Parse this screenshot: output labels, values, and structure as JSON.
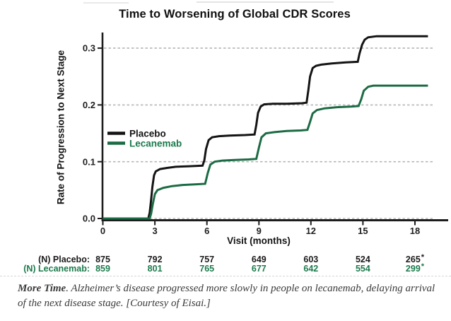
{
  "title": "Time to Worsening of Global CDR Scores",
  "colors": {
    "placebo_line": "#141414",
    "lecanemab_line": "#1c6b44",
    "lecanemab_text": "#1c7a4c",
    "grid": "#b5b5b5",
    "axis": "#1c1c1c"
  },
  "chart_data": {
    "type": "line",
    "subtype": "step-cumulative-incidence",
    "title": "Time to Worsening of Global CDR Scores",
    "xlabel": "Visit (months)",
    "ylabel": "Rate of Progression to Next Stage",
    "xlim": [
      0,
      19.2
    ],
    "ylim": [
      0,
      0.325
    ],
    "xticks": [
      0,
      3,
      6,
      9,
      12,
      15,
      18
    ],
    "xtick_labels": [
      "0",
      "3",
      "6",
      "9",
      "12",
      "15",
      "18"
    ],
    "yticks": [
      0,
      0.1,
      0.2,
      0.3
    ],
    "ytick_labels": [
      "0.0",
      "0.1",
      "0.2",
      "0.3"
    ],
    "grid": "horizontal dashed at 0.0, 0.1, 0.2, 0.3",
    "legend_position": "inside left-middle",
    "series": [
      {
        "name": "Placebo",
        "color_key": "placebo_line",
        "text_color_key": "placebo_line",
        "points": [
          [
            0,
            0
          ],
          [
            2.62,
            0
          ],
          [
            2.7,
            0.01
          ],
          [
            2.78,
            0.032
          ],
          [
            2.86,
            0.056
          ],
          [
            2.95,
            0.076
          ],
          [
            3.05,
            0.083
          ],
          [
            3.3,
            0.087
          ],
          [
            3.7,
            0.089
          ],
          [
            4.2,
            0.091
          ],
          [
            5.0,
            0.092
          ],
          [
            5.75,
            0.093
          ],
          [
            5.85,
            0.102
          ],
          [
            5.95,
            0.122
          ],
          [
            6.1,
            0.138
          ],
          [
            6.3,
            0.143
          ],
          [
            6.7,
            0.145
          ],
          [
            7.3,
            0.146
          ],
          [
            8.2,
            0.147
          ],
          [
            8.75,
            0.148
          ],
          [
            8.85,
            0.165
          ],
          [
            8.95,
            0.186
          ],
          [
            9.1,
            0.197
          ],
          [
            9.3,
            0.201
          ],
          [
            9.8,
            0.202
          ],
          [
            10.6,
            0.202
          ],
          [
            11.5,
            0.203
          ],
          [
            11.75,
            0.204
          ],
          [
            11.85,
            0.226
          ],
          [
            11.95,
            0.25
          ],
          [
            12.1,
            0.265
          ],
          [
            12.3,
            0.269
          ],
          [
            12.6,
            0.271
          ],
          [
            13.2,
            0.273
          ],
          [
            14.0,
            0.275
          ],
          [
            14.7,
            0.276
          ],
          [
            14.8,
            0.29
          ],
          [
            14.95,
            0.306
          ],
          [
            15.1,
            0.315
          ],
          [
            15.3,
            0.319
          ],
          [
            15.8,
            0.321
          ],
          [
            18.75,
            0.321
          ]
        ]
      },
      {
        "name": "Lecanemab",
        "color_key": "lecanemab_line",
        "text_color_key": "lecanemab_text",
        "points": [
          [
            0,
            0
          ],
          [
            2.7,
            0
          ],
          [
            2.78,
            0.008
          ],
          [
            2.88,
            0.025
          ],
          [
            3.0,
            0.043
          ],
          [
            3.15,
            0.05
          ],
          [
            3.5,
            0.054
          ],
          [
            4.0,
            0.057
          ],
          [
            4.6,
            0.059
          ],
          [
            5.3,
            0.06
          ],
          [
            5.9,
            0.061
          ],
          [
            6.05,
            0.08
          ],
          [
            6.2,
            0.095
          ],
          [
            6.45,
            0.1
          ],
          [
            6.9,
            0.102
          ],
          [
            7.6,
            0.103
          ],
          [
            8.4,
            0.104
          ],
          [
            8.85,
            0.105
          ],
          [
            9.0,
            0.125
          ],
          [
            9.15,
            0.143
          ],
          [
            9.4,
            0.15
          ],
          [
            9.9,
            0.152
          ],
          [
            10.6,
            0.154
          ],
          [
            11.4,
            0.155
          ],
          [
            11.8,
            0.156
          ],
          [
            11.95,
            0.17
          ],
          [
            12.1,
            0.185
          ],
          [
            12.35,
            0.191
          ],
          [
            12.8,
            0.194
          ],
          [
            13.5,
            0.196
          ],
          [
            14.3,
            0.197
          ],
          [
            14.75,
            0.198
          ],
          [
            14.9,
            0.21
          ],
          [
            15.05,
            0.225
          ],
          [
            15.3,
            0.232
          ],
          [
            15.6,
            0.234
          ],
          [
            18.75,
            0.234
          ]
        ]
      }
    ]
  },
  "legend": [
    {
      "label": "Placebo",
      "color_key": "placebo_line",
      "text_color_key": "placebo_line"
    },
    {
      "label": "Lecanemab",
      "color_key": "lecanemab_line",
      "text_color_key": "lecanemab_text"
    }
  ],
  "risk_table": {
    "rows": [
      {
        "label": "(N) Placebo:",
        "color": "#1a1a1a",
        "values": [
          "875",
          "792",
          "757",
          "649",
          "603",
          "524",
          "265*"
        ]
      },
      {
        "label": "(N) Lecanemab:",
        "color": "#1c7a4c",
        "values": [
          "859",
          "801",
          "765",
          "677",
          "642",
          "554",
          "299*"
        ]
      }
    ]
  },
  "caption": {
    "lead": "More Time",
    "rest": ". Alzheimer’s disease progressed more slowly in people on lecanemab, delaying arrival of the next disease stage. [Courtesy of Eisai.]"
  }
}
